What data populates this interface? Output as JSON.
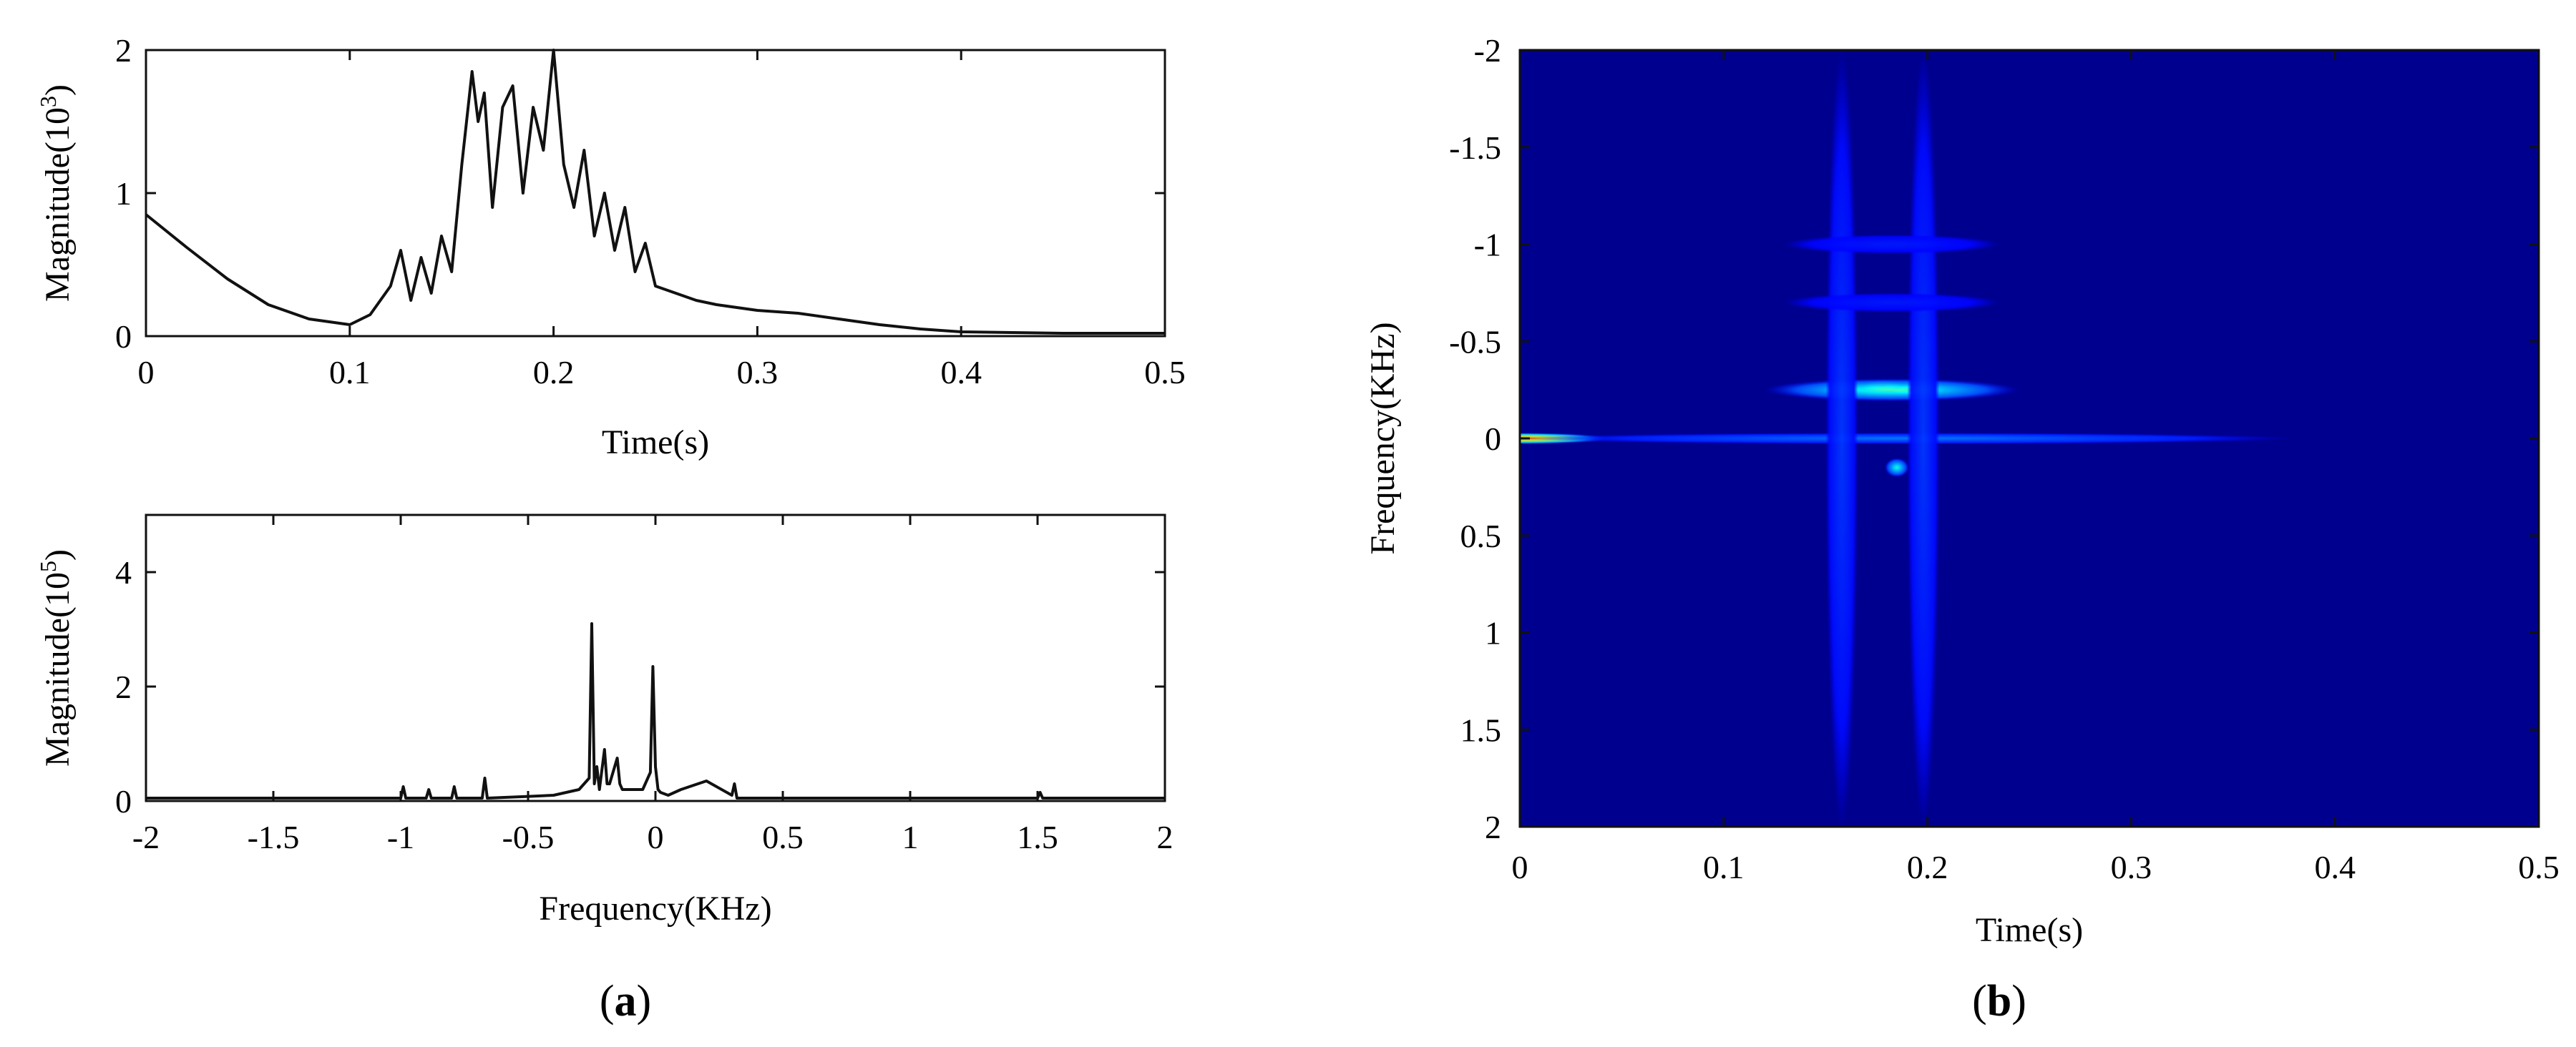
{
  "panel_labels": {
    "a": "a",
    "b": "b"
  },
  "chart_data": [
    {
      "id": "time_signal",
      "type": "line",
      "title": "",
      "xlabel": "Time(s)",
      "ylabel_main": "Magnitude(10",
      "ylabel_exp": "3",
      "ylabel_close": ")",
      "xlim": [
        0,
        0.5
      ],
      "ylim": [
        0,
        2
      ],
      "xticks": [
        0,
        0.1,
        0.2,
        0.3,
        0.4,
        0.5
      ],
      "xtick_labels": [
        "0",
        "0.1",
        "0.2",
        "0.3",
        "0.4",
        "0.5"
      ],
      "yticks": [
        0,
        1,
        2
      ],
      "ytick_labels": [
        "0",
        "1",
        "2"
      ],
      "color": "#111111",
      "series": [
        {
          "x": [
            0,
            0.02,
            0.04,
            0.06,
            0.08,
            0.1,
            0.11,
            0.12,
            0.125,
            0.13,
            0.135,
            0.14,
            0.145,
            0.15,
            0.155,
            0.16,
            0.163,
            0.166,
            0.17,
            0.175,
            0.18,
            0.185,
            0.19,
            0.195,
            0.2,
            0.205,
            0.21,
            0.215,
            0.22,
            0.225,
            0.23,
            0.235,
            0.24,
            0.245,
            0.25,
            0.26,
            0.27,
            0.28,
            0.3,
            0.32,
            0.34,
            0.36,
            0.38,
            0.4,
            0.45,
            0.5
          ],
          "y": [
            0.85,
            0.62,
            0.4,
            0.22,
            0.12,
            0.08,
            0.15,
            0.35,
            0.6,
            0.25,
            0.55,
            0.3,
            0.7,
            0.45,
            1.2,
            1.85,
            1.5,
            1.7,
            0.9,
            1.6,
            1.75,
            1.0,
            1.6,
            1.3,
            2.0,
            1.2,
            0.9,
            1.3,
            0.7,
            1.0,
            0.6,
            0.9,
            0.45,
            0.65,
            0.35,
            0.3,
            0.25,
            0.22,
            0.18,
            0.16,
            0.12,
            0.08,
            0.05,
            0.03,
            0.02,
            0.02
          ]
        }
      ]
    },
    {
      "id": "spectrum",
      "type": "line",
      "title": "",
      "xlabel": "Frequency(KHz)",
      "ylabel_main": "Magnitude(10",
      "ylabel_exp": "5",
      "ylabel_close": ")",
      "xlim": [
        -2,
        2
      ],
      "ylim": [
        0,
        5
      ],
      "xticks": [
        -2,
        -1.5,
        -1,
        -0.5,
        0,
        0.5,
        1,
        1.5,
        2
      ],
      "xtick_labels": [
        "-2",
        "-1.5",
        "-1",
        "-0.5",
        "0",
        "0.5",
        "1",
        "1.5",
        "2"
      ],
      "yticks": [
        0,
        2,
        4
      ],
      "ytick_labels": [
        "0",
        "2",
        "4"
      ],
      "color": "#111111",
      "series": [
        {
          "x": [
            -2,
            -1.5,
            -1.0,
            -0.99,
            -0.98,
            -0.9,
            -0.89,
            -0.88,
            -0.8,
            -0.79,
            -0.78,
            -0.68,
            -0.67,
            -0.66,
            -0.5,
            -0.4,
            -0.3,
            -0.26,
            -0.25,
            -0.24,
            -0.23,
            -0.22,
            -0.2,
            -0.19,
            -0.18,
            -0.15,
            -0.14,
            -0.13,
            -0.05,
            -0.02,
            -0.01,
            0.0,
            0.01,
            0.02,
            0.05,
            0.1,
            0.2,
            0.3,
            0.31,
            0.32,
            0.5,
            1.0,
            1.5,
            1.51,
            1.52,
            2.0
          ],
          "y": [
            0.05,
            0.05,
            0.05,
            0.25,
            0.05,
            0.05,
            0.2,
            0.05,
            0.05,
            0.25,
            0.05,
            0.05,
            0.4,
            0.05,
            0.08,
            0.1,
            0.2,
            0.4,
            3.1,
            0.3,
            0.6,
            0.2,
            0.9,
            0.3,
            0.3,
            0.75,
            0.3,
            0.2,
            0.2,
            0.5,
            2.35,
            0.6,
            0.2,
            0.15,
            0.1,
            0.2,
            0.35,
            0.1,
            0.3,
            0.05,
            0.05,
            0.05,
            0.05,
            0.15,
            0.05,
            0.05
          ]
        }
      ]
    },
    {
      "id": "time_frequency",
      "type": "heatmap",
      "title": "",
      "xlabel": "Time(s)",
      "ylabel": "Frequency(KHz)",
      "xlim": [
        0,
        0.5
      ],
      "ylim": [
        -2,
        2
      ],
      "y_inverted": true,
      "xticks": [
        0,
        0.1,
        0.2,
        0.3,
        0.4,
        0.5
      ],
      "xtick_labels": [
        "0",
        "0.1",
        "0.2",
        "0.3",
        "0.4",
        "0.5"
      ],
      "yticks": [
        -2,
        -1.5,
        -1,
        -0.5,
        0,
        0.5,
        1,
        1.5,
        2
      ],
      "ytick_labels": [
        "-2",
        "-1.5",
        "-1",
        "-0.5",
        "0",
        "0.5",
        "1",
        "1.5",
        "2"
      ],
      "colormap": "jet",
      "background_color": "#00008f",
      "features": [
        {
          "kind": "peak",
          "t": 0.0,
          "f": 0.0,
          "t_width": 0.045,
          "f_width": 0.03,
          "intensity": 0.85
        },
        {
          "kind": "peak",
          "t": 0.158,
          "f": -0.25,
          "t_width": 0.01,
          "f_width": 0.03,
          "intensity": 1.0
        },
        {
          "kind": "peak",
          "t": 0.195,
          "f": -0.25,
          "t_width": 0.014,
          "f_width": 0.03,
          "intensity": 0.95
        },
        {
          "kind": "peak",
          "t": 0.178,
          "f": -0.27,
          "t_width": 0.01,
          "f_width": 0.03,
          "intensity": 0.8
        },
        {
          "kind": "band",
          "t_start": 0.12,
          "t_end": 0.245,
          "f": -0.25,
          "f_width": 0.06,
          "intensity": 0.45
        },
        {
          "kind": "band",
          "t_start": 0.0,
          "t_end": 0.38,
          "f": 0.0,
          "f_width": 0.03,
          "intensity": 0.25
        },
        {
          "kind": "vline",
          "t": 0.158,
          "f_start": -2,
          "f_end": 2,
          "t_width": 0.008,
          "intensity": 0.18
        },
        {
          "kind": "vline",
          "t": 0.198,
          "f_start": -2,
          "f_end": 2,
          "t_width": 0.008,
          "intensity": 0.18
        },
        {
          "kind": "peak",
          "t": 0.185,
          "f": 0.15,
          "t_width": 0.006,
          "f_width": 0.05,
          "intensity": 0.4
        },
        {
          "kind": "band",
          "t_start": 0.13,
          "t_end": 0.235,
          "f": -1.0,
          "f_width": 0.05,
          "intensity": 0.15
        },
        {
          "kind": "band",
          "t_start": 0.13,
          "t_end": 0.235,
          "f": -0.7,
          "f_width": 0.05,
          "intensity": 0.15
        }
      ]
    }
  ]
}
